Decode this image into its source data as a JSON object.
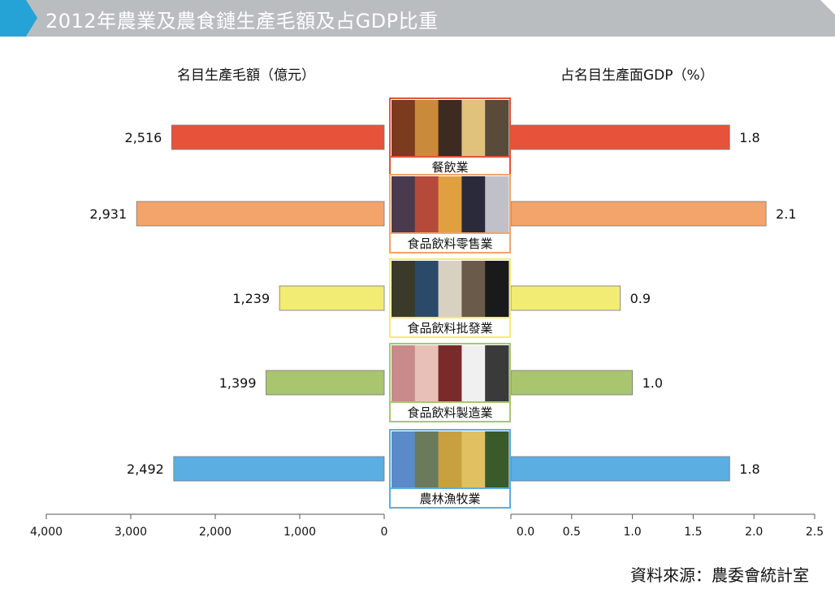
{
  "title": "2012年農業及農食鏈生產毛額及占GDP比重",
  "headers": {
    "left": "名目生產毛額（億元）",
    "right": "占名目生產面GDP（%）"
  },
  "source": "資料來源：農委會統計室",
  "colors": {
    "title_bar": "#b9bdc0",
    "title_accent": "#25a3d6"
  },
  "chart_data": {
    "type": "bar",
    "categories": [
      "餐飲業",
      "食品飲料零售業",
      "食品飲料批發業",
      "食品飲料製造業",
      "農林漁牧業"
    ],
    "series": [
      {
        "values": [
          2516,
          2931,
          1239,
          1399,
          2492
        ]
      },
      {
        "values": [
          1.8,
          2.1,
          0.9,
          1.0,
          1.8
        ]
      }
    ],
    "value_labels_left": [
      "2,516",
      "2,931",
      "1,239",
      "1,399",
      "2,492"
    ],
    "value_labels_right": [
      "1.8",
      "2.1",
      "0.9",
      "1.0",
      "1.8"
    ],
    "colors": [
      "#e6533a",
      "#f3a46a",
      "#f2ec74",
      "#a9c66e",
      "#5aaee1"
    ],
    "left_axis": {
      "ticks": [
        "4,000",
        "3,000",
        "2,000",
        "1,000",
        "0"
      ],
      "tick_values": [
        4000,
        3000,
        2000,
        1000,
        0
      ],
      "range": [
        0,
        4000
      ]
    },
    "right_axis": {
      "ticks": [
        "0.0",
        "0.5",
        "1.0",
        "1.5",
        "2.0",
        "2.5"
      ],
      "tick_values": [
        0,
        0.5,
        1.0,
        1.5,
        2.0,
        2.5
      ],
      "range": [
        0,
        2.5
      ]
    }
  }
}
